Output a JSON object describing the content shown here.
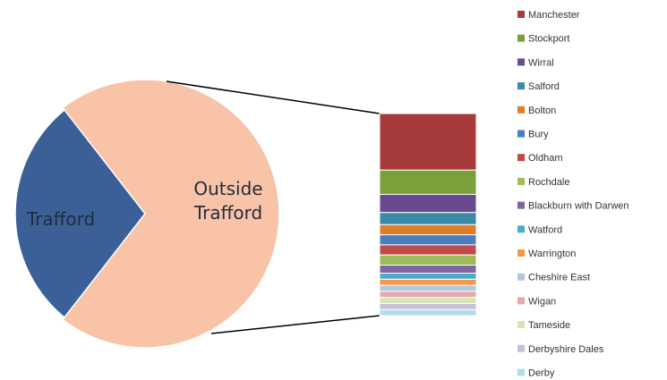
{
  "chart_data": {
    "type": "bar-of-pie",
    "pie": {
      "slices": [
        {
          "label": "Trafford",
          "value": 29,
          "color": "#3b6098"
        },
        {
          "label": "Outside Trafford",
          "value": 71,
          "color": "#f8c3a6"
        }
      ]
    },
    "bar": {
      "parent_slice": "Outside Trafford",
      "categories": [
        {
          "label": "Manchester",
          "value": 28,
          "color": "#a63a3a"
        },
        {
          "label": "Stockport",
          "value": 12,
          "color": "#7aa03c"
        },
        {
          "label": "Wirral",
          "value": 9,
          "color": "#6a4a8f"
        },
        {
          "label": "Salford",
          "value": 6,
          "color": "#3a8aa8"
        },
        {
          "label": "Bolton",
          "value": 5,
          "color": "#e07d2b"
        },
        {
          "label": "Bury",
          "value": 5,
          "color": "#4a7ec0"
        },
        {
          "label": "Oldham",
          "value": 5,
          "color": "#c04a4a"
        },
        {
          "label": "Rochdale",
          "value": 5,
          "color": "#9cbb59"
        },
        {
          "label": "Blackburn with Darwen",
          "value": 4,
          "color": "#8064a2"
        },
        {
          "label": "Watford",
          "value": 3,
          "color": "#4bacc6"
        },
        {
          "label": "Warrington",
          "value": 3,
          "color": "#f79646"
        },
        {
          "label": "Cheshire East",
          "value": 3,
          "color": "#b3c7de"
        },
        {
          "label": "Wigan",
          "value": 3,
          "color": "#e6a8a8"
        },
        {
          "label": "Tameside",
          "value": 3,
          "color": "#d7e3b8"
        },
        {
          "label": "Derbyshire Dales",
          "value": 3,
          "color": "#c8bed8"
        },
        {
          "label": "Derby",
          "value": 3,
          "color": "#b0dde8"
        }
      ]
    },
    "legend_position": "right"
  }
}
